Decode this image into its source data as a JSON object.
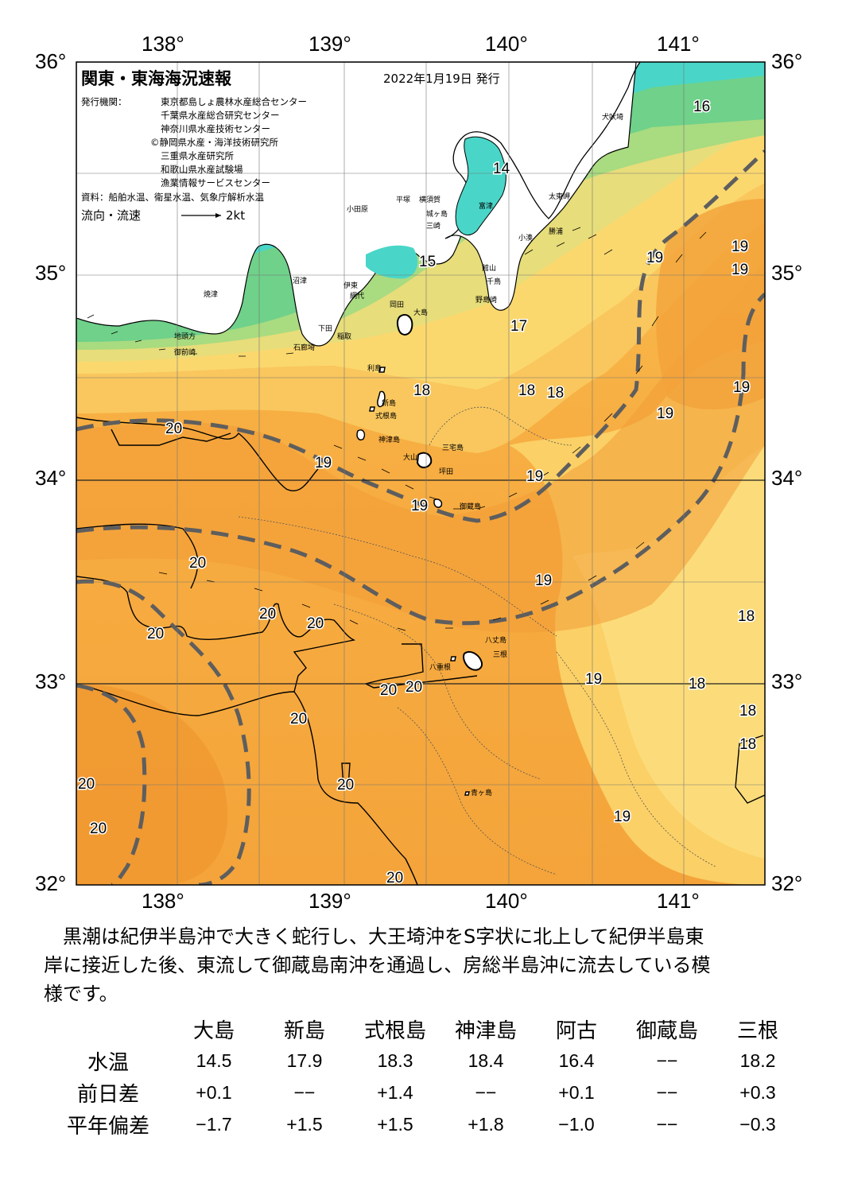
{
  "header": {
    "title": "関東・東海海況速報",
    "date": "2022年1月19日 発行",
    "issuer_label": "発行機関：",
    "issuers": [
      "東京都島しょ農林水産総合センター",
      "千葉県水産総合研究センター",
      "神奈川県水産技術センター",
      "©静岡県水産・海洋技術研究所",
      "三重県水産研究所",
      "和歌山県水産試験場",
      "漁業情報サービスセンター"
    ],
    "source": "資料：船舶水温、衛星水温、気象庁解析水温",
    "flow_label": "流向・流速",
    "flow_scale": "2kt"
  },
  "axes": {
    "lon_labels": [
      "138°",
      "139°",
      "140°",
      "141°"
    ],
    "lat_labels": [
      "36°",
      "35°",
      "34°",
      "33°",
      "32°"
    ]
  },
  "map": {
    "colors": {
      "kuroshio_warm": "#f5a23a",
      "warm": "#f8b64a",
      "mid": "#fbd269",
      "cool": "#cfe28a",
      "cold": "#7ed88c",
      "coldest": "#3fd6d0",
      "land": "#ffffff",
      "axis_line": "#5a5a5a"
    },
    "temperature_labels": [
      {
        "id": "t16",
        "text": "16"
      },
      {
        "id": "t14",
        "text": "14"
      },
      {
        "id": "t15",
        "text": "15"
      },
      {
        "id": "t17",
        "text": "17"
      },
      {
        "id": "t18a",
        "text": "18"
      },
      {
        "id": "t18b",
        "text": "18"
      },
      {
        "id": "t18c",
        "text": "18"
      },
      {
        "id": "t19a",
        "text": "19"
      },
      {
        "id": "t19b",
        "text": "19"
      },
      {
        "id": "t19c",
        "text": "19"
      },
      {
        "id": "t19d",
        "text": "19"
      },
      {
        "id": "t19e",
        "text": "19"
      },
      {
        "id": "t19f",
        "text": "19"
      },
      {
        "id": "t19g",
        "text": "19"
      },
      {
        "id": "t19h",
        "text": "19"
      },
      {
        "id": "t19i",
        "text": "19"
      },
      {
        "id": "t19j",
        "text": "19"
      },
      {
        "id": "t20a",
        "text": "20"
      },
      {
        "id": "t20b",
        "text": "20"
      },
      {
        "id": "t20c",
        "text": "20"
      },
      {
        "id": "t20d",
        "text": "20"
      },
      {
        "id": "t20e",
        "text": "20"
      },
      {
        "id": "t20f",
        "text": "20"
      },
      {
        "id": "t20g",
        "text": "20"
      },
      {
        "id": "t20h",
        "text": "20"
      },
      {
        "id": "t20i",
        "text": "20"
      },
      {
        "id": "t20j",
        "text": "20"
      },
      {
        "id": "t20k",
        "text": "20"
      },
      {
        "id": "t18d",
        "text": "18"
      },
      {
        "id": "t18e",
        "text": "18"
      },
      {
        "id": "t18f",
        "text": "18"
      },
      {
        "id": "t18g",
        "text": "18"
      }
    ],
    "places": [
      "犬吠埼",
      "太東岬",
      "勝浦",
      "小湊",
      "館山",
      "千鳥",
      "野島崎",
      "富津",
      "横須賀",
      "城ヶ島",
      "三崎",
      "平塚",
      "小田原",
      "大島",
      "利島",
      "新島",
      "式根島",
      "神津島",
      "三宅島",
      "御蔵島",
      "八丈島",
      "三根",
      "青ヶ島",
      "沼津",
      "伊東",
      "網代",
      "下田",
      "石廊埼",
      "御前崎",
      "焼津",
      "地頭方",
      "稲取",
      "岡田",
      "大山",
      "坪田",
      "八重根"
    ]
  },
  "description": [
    "黒潮は紀伊半島沖で大きく蛇行し、大王埼沖をS字状に北上して紀伊半島東",
    "岸に接近した後、東流して御蔵島南沖を通過し、房総半島沖に流去している模",
    "様です。"
  ],
  "stations": {
    "columns": [
      "大島",
      "新島",
      "式根島",
      "神津島",
      "阿古",
      "御蔵島",
      "三根"
    ],
    "rows": [
      {
        "label": "水温",
        "values": [
          "14.5",
          "17.9",
          "18.3",
          "18.4",
          "16.4",
          "−−",
          "18.2"
        ]
      },
      {
        "label": "前日差",
        "values": [
          "+0.1",
          "−−",
          "+1.4",
          "−−",
          "+0.1",
          "−−",
          "+0.3"
        ]
      },
      {
        "label": "平年偏差",
        "values": [
          "−1.7",
          "+1.5",
          "+1.5",
          "+1.8",
          "−1.0",
          "−−",
          "−0.3"
        ]
      }
    ]
  }
}
